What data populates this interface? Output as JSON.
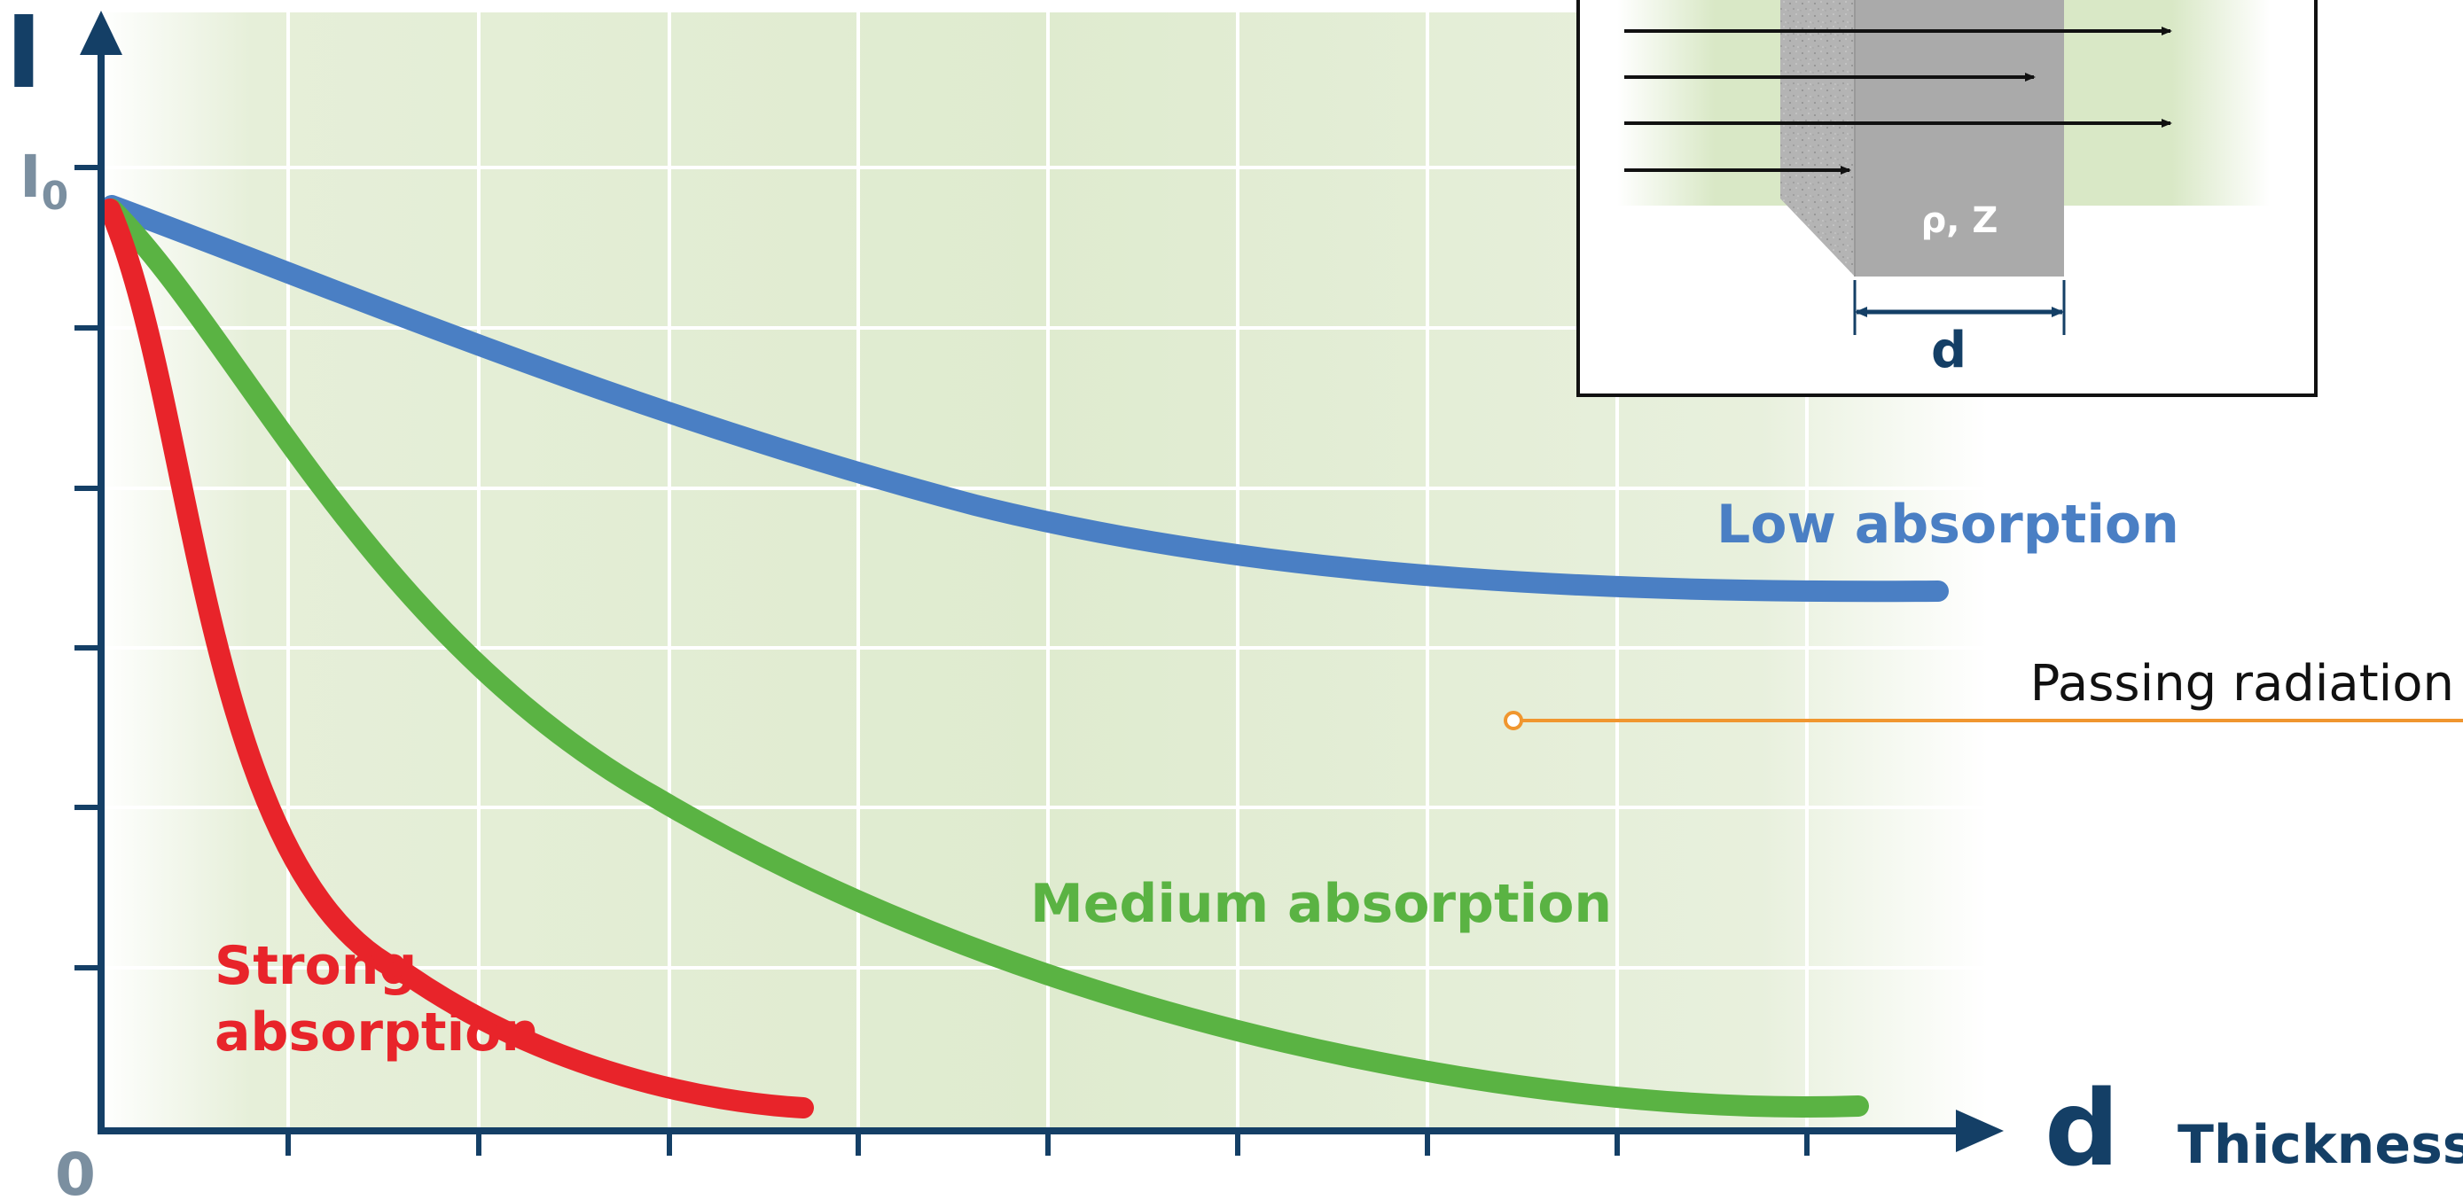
{
  "axes": {
    "y_symbol": "I",
    "i0_main": "I",
    "i0_sub": "0",
    "origin": "0",
    "x_symbol": "d",
    "x_name": "Thickness"
  },
  "curves": [
    {
      "name": "Low absorption",
      "label_lines": [
        "Low absorption"
      ],
      "color": "#4a7fc4"
    },
    {
      "name": "Medium absorption",
      "label_lines": [
        "Medium absorption"
      ],
      "color": "#5ab343"
    },
    {
      "name": "Strong absorption",
      "label_lines": [
        "Strong",
        "absorption"
      ],
      "color": "#e8242a"
    }
  ],
  "callout": {
    "text": "Passing radiation",
    "line_color": "#f0962f"
  },
  "inset": {
    "material_label": "ρ, Z",
    "thickness_label": "d"
  },
  "colors": {
    "axis": "#143f66",
    "muted": "#7b8fa0",
    "plot_bg": "#e3eed6",
    "grid": "#ffffff"
  }
}
